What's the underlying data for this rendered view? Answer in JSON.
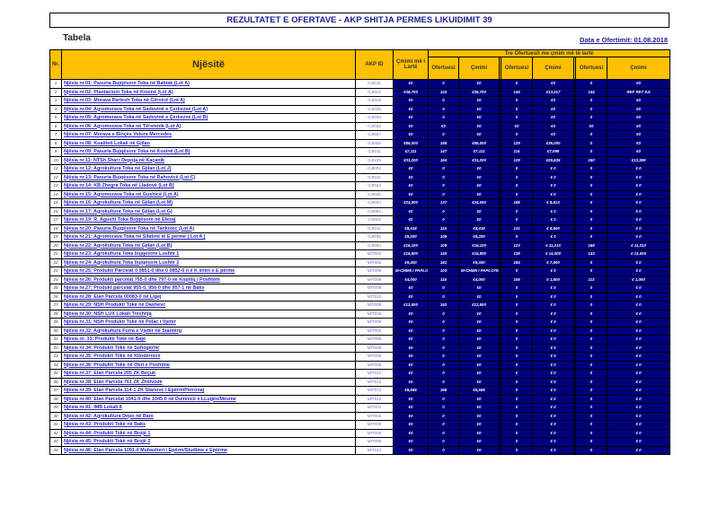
{
  "title": "REZULTATET E OFERTAVE - AKP SHITJA PERMES LIKUIDIMIT 39",
  "subtitle": "Tabela",
  "date": "Data e Ofertimit: 01.08.2018",
  "headers": {
    "nr": "Nr.",
    "unit": "Njësitë",
    "akp": "AKP ID",
    "highest": "Çmimi më i Lartë",
    "top3": "Tre Ofertuesit me çmim më të lartë",
    "bidder": "Ofertuesi",
    "price": "Çmimi"
  },
  "colors": {
    "header": "#FFC000",
    "value_bg": "#00007F",
    "link": "#2626C8"
  },
  "rows": [
    {
      "nr": "1",
      "name": "Njësia nr.01: Pasuria Bujqësore Toka në Babiak (Lot A)",
      "akp": "GJI011",
      "v": [
        "€0",
        "0",
        "€0",
        "0",
        "€0",
        "0",
        "€0"
      ]
    },
    {
      "nr": "2",
      "name": "Njësia nr.02: Plantacioni Toka në Kosinë (Lot A)",
      "akp": "GJI012",
      "v": [
        "€38,700",
        "143",
        "€38,700",
        "145",
        "€13,317",
        "144",
        "REF RET 8.6"
      ]
    },
    {
      "nr": "3",
      "name": "Njësia nr.03: Morava Partesh Toka në Cërnicë (Lot A)",
      "akp": "GJI018",
      "v": [
        "€0",
        "0",
        "€0",
        "0",
        "€0",
        "0",
        "€0"
      ]
    },
    {
      "nr": "4",
      "name": "Njësia nr.04: Agromorava Toka në Sadovinë e Çerkezve (Lot A)",
      "akp": "GJI035",
      "v": [
        "€0",
        "0",
        "€0",
        "0",
        "€0",
        "0",
        "€0"
      ]
    },
    {
      "nr": "5",
      "name": "Njësia nr.05: Agromorava Toka në Sadovinë e Çerkezve (Lot B)",
      "akp": "GJI035",
      "v": [
        "€0",
        "0",
        "€0",
        "0",
        "€0",
        "0",
        "€0"
      ]
    },
    {
      "nr": "6",
      "name": "Njësia nr.06: Agromorava Toka në Tërstenik (Lot A)",
      "akp": "GJI035",
      "v": [
        "€0",
        "€0",
        "€0",
        "€0",
        "€0",
        "€0",
        "€0"
      ]
    },
    {
      "nr": "7",
      "name": "Njësia nr.07: Morava e Binçës Vetura Mercedes",
      "akp": "GJI037",
      "v": [
        "€0",
        "0",
        "€0",
        "0",
        "€0",
        "0",
        "€0"
      ]
    },
    {
      "nr": "8",
      "name": "Njësia nr.08: Kualiteti Lokali në Gjilan",
      "akp": "GJI005",
      "v": [
        "€86,000",
        "158",
        "€86,000",
        "129",
        "€35,000",
        "0",
        "€0"
      ]
    },
    {
      "nr": "9",
      "name": "Njësia nr.09: Pasuria Bujqësore Toka në Kosinë (Lot B)",
      "akp": "GJI011",
      "v": [
        "€7,111",
        "147",
        "€7,111",
        "114",
        "€7,098",
        "0",
        "€0"
      ]
    },
    {
      "nr": "10",
      "name": "Njësia nr.11: NTSh Sharr Depoja në Kaçanik",
      "akp": "GJI105",
      "v": [
        "€31,200",
        "164",
        "€31,200",
        "129",
        "€26,535",
        "160",
        "€13,359"
      ]
    },
    {
      "nr": "11",
      "name": "Njësia nr.12: Agrokultura Toka në Gjilan (Lot J)",
      "akp": "GJI004",
      "v": [
        "€0",
        "0",
        "€0",
        "0",
        "€ 0",
        "0",
        "€ 0"
      ]
    },
    {
      "nr": "12",
      "name": "Njësia nr.13: Pasuria Bujqësore Toka në Rahovicë (Lot C)",
      "akp": "GJI011",
      "v": [
        "€0",
        "0",
        "€0",
        "0",
        "€ 0",
        "0",
        "€ 0"
      ]
    },
    {
      "nr": "13",
      "name": "Njësia nr.14: KB Zhegra Toka në Lladovë (Lot B)",
      "akp": "GJI024",
      "v": [
        "€0",
        "0",
        "€0",
        "0",
        "€ 0",
        "0",
        "€ 0"
      ]
    },
    {
      "nr": "14",
      "name": "Njësia nr.15: Agromorava Toka në Gushicë (Lot A)",
      "akp": "GJI035",
      "v": [
        "€0",
        "0",
        "€0",
        "0",
        "€ 0",
        "0",
        "€ 0"
      ]
    },
    {
      "nr": "15",
      "name": "Njësia nr.16: Agrokultura Toka në Gjilan (Lot M)",
      "akp": "GJI004",
      "v": [
        "€24,000",
        "137",
        "€24,000",
        "168",
        "€ 8,613",
        "0",
        "€ 0"
      ]
    },
    {
      "nr": "16",
      "name": "Njësia nr.17: Agrokultura Toka në Gjilan (Lot G)",
      "akp": "GJI004",
      "v": [
        "€0",
        "0",
        "€0",
        "0",
        "€ 0",
        "0",
        "€ 0"
      ]
    },
    {
      "nr": "17",
      "name": "Njësia nr.19: R. Agushi Toka Bujqësore në Elezaj",
      "akp": "GJI026",
      "v": [
        "€0",
        "0",
        "€0",
        "0",
        "€ 0",
        "0",
        "€ 0"
      ]
    },
    {
      "nr": "18",
      "name": "Njësia nr.20: Pasuria Bujqësore Toka në Tankosic (Lot A)",
      "akp": "GJI011",
      "v": [
        "€8,418",
        "115",
        "€8,418",
        "131",
        "€ 6,500",
        "0",
        "€ 0"
      ]
    },
    {
      "nr": "19",
      "name": "Njësia nr.21: Agromorava Toka në Sllatinë të E përme ( Lot A )",
      "akp": "GJI035",
      "v": [
        "€9,200",
        "108",
        "€9,200",
        "0",
        "€ 0",
        "0",
        "€ 0"
      ]
    },
    {
      "nr": "20",
      "name": "Njësia nr.22: Agrokultura Toka në Gjilan (Lot B)",
      "akp": "GJI004",
      "v": [
        "€16,100",
        "109",
        "€16,100",
        "123",
        "€ 11,213",
        "165",
        "€ 11,313"
      ]
    },
    {
      "nr": "21",
      "name": "Njësia nr.23: Agrokultura Toka bujqësore Lushtë 1",
      "akp": "MIT002",
      "v": [
        "€15,800",
        "140",
        "€15,800",
        "138",
        "€ 14,000",
        "143",
        "€ 13,000"
      ]
    },
    {
      "nr": "22",
      "name": "Njësia nr.24: Agrokultura Toka bujqësore Lushtë 2",
      "akp": "MIT002",
      "v": [
        "€9,400",
        "181",
        "€9,400",
        "184",
        "€ 7,500",
        "0",
        "€ 0"
      ]
    },
    {
      "nr": "23",
      "name": "Njësia nr.25: Produkti Parcelat 0 0851-0 dhe 0 0852-0 n ë K linën e E përme",
      "akp": "MIT008",
      "v": [
        "M-CMIMI I PAPLOT",
        "103",
        "M-CMIMI I PAPLOTES",
        "0",
        "€ 0",
        "0",
        "€ 0"
      ]
    },
    {
      "nr": "24",
      "name": "Njësia nr.26: Produkti parcelat 755-0 dhe 797-0 në Kopiliq i Poshtëm",
      "akp": "MIT008",
      "v": [
        "€4,000",
        "116",
        "€4,000",
        "106",
        "€ 1,500",
        "113",
        "€ 1,000"
      ]
    },
    {
      "nr": "25",
      "name": "Njësia nr.27: Produkt parcelat 955-0, 956-0 dhe 957-1 në Baks",
      "akp": "MIT008",
      "v": [
        "€0",
        "0",
        "€0",
        "0",
        "€ 0",
        "0",
        "€ 0"
      ]
    },
    {
      "nr": "26",
      "name": "Njësia nr.28: Elan Parcela 00083-0 në Ligej",
      "akp": "MIT012",
      "v": [
        "€0",
        "0",
        "€0",
        "0",
        "€ 0",
        "0",
        "€ 0"
      ]
    },
    {
      "nr": "27",
      "name": "Njësia nr.29: NSH Produkti Tokë në Dashevc",
      "akp": "MIT008",
      "v": [
        "€12,500",
        "162",
        "€12,500",
        "0",
        "€ 0",
        "0",
        "€ 0"
      ]
    },
    {
      "nr": "28",
      "name": "Njësia nr.30: NSH LUX Lokali Treshnja",
      "akp": "MIT039",
      "v": [
        "€0",
        "0",
        "€0",
        "0",
        "€ 0",
        "0",
        "€ 0"
      ]
    },
    {
      "nr": "29",
      "name": "Njësia nr.31: NSH Produkti Tokë në Polac i Vjetër",
      "akp": "MIT008",
      "v": [
        "€0",
        "0",
        "€0",
        "0",
        "€ 0",
        "0",
        "€ 0"
      ]
    },
    {
      "nr": "30",
      "name": "Njësia nr.32: Agrokultura Furra e Vjetër në Stantërg",
      "akp": "MIT002",
      "v": [
        "€0",
        "0",
        "€0",
        "0",
        "€ 0",
        "0",
        "€ 0"
      ]
    },
    {
      "nr": "31",
      "name": "Njësia nr. 33: Produkti Tokë në Bajë",
      "akp": "MIT008",
      "v": [
        "€0",
        "0",
        "€0",
        "0",
        "€ 0",
        "0",
        "€ 0"
      ]
    },
    {
      "nr": "32",
      "name": "Njësia nr.34: Produkti Tokë në Suhogërllë",
      "akp": "MIT008",
      "v": [
        "€0",
        "0",
        "€0",
        "0",
        "€ 0",
        "0",
        "€ 0"
      ]
    },
    {
      "nr": "33",
      "name": "Njësia nr.35: Produkti Tokë në Kllodërnicë",
      "akp": "MIT008",
      "v": [
        "€0",
        "0",
        "€0",
        "0",
        "€ 0",
        "0",
        "€ 0"
      ]
    },
    {
      "nr": "34",
      "name": "Njësia nr.36: Produkti Tokë në Obri e Poshtme",
      "akp": "MIT008",
      "v": [
        "€0",
        "0",
        "€0",
        "0",
        "€ 0",
        "0",
        "€ 0"
      ]
    },
    {
      "nr": "35",
      "name": "Njësia nr.37: Elan Parcela 205 ZK Beçuk",
      "akp": "MIT012",
      "v": [
        "€0",
        "0",
        "€0",
        "0",
        "€ 0",
        "0",
        "€ 0"
      ]
    },
    {
      "nr": "36",
      "name": "Njësia nr.38: Elan Parcela 761 ZK Zhilivodë",
      "akp": "MIT012",
      "v": [
        "€0",
        "0",
        "€0",
        "0",
        "€ 0",
        "0",
        "€ 0"
      ]
    },
    {
      "nr": "37",
      "name": "Njësia nr.39: Elan Parcela 114-1 ZK Stanovc i Epërm/Përronaj",
      "akp": "MIT012",
      "v": [
        "€5,555",
        "166",
        "€5,555",
        "0",
        "€ 0",
        "0",
        "€ 0"
      ]
    },
    {
      "nr": "38",
      "name": "Njësia nr.40: Elan Parcelat 1041-0 dhe 1045-0 në Dumnicë e LLugës/Mesme",
      "akp": "MIT012",
      "v": [
        "€0",
        "0",
        "€0",
        "0",
        "€ 0",
        "0",
        "€ 0"
      ]
    },
    {
      "nr": "39",
      "name": "Njësia nr.41: IMB Lokali 8",
      "akp": "MIT001",
      "v": [
        "€0",
        "0",
        "€0",
        "0",
        "€ 0",
        "0",
        "€ 0"
      ]
    },
    {
      "nr": "40",
      "name": "Njësia nr.42: Agrokultura Depo në Bare",
      "akp": "MIT002",
      "v": [
        "€0",
        "0",
        "€0",
        "0",
        "€ 0",
        "0",
        "€ 0"
      ]
    },
    {
      "nr": "41",
      "name": "Njësia nr.43: Produkti Tokë në Baks",
      "akp": "MIT008",
      "v": [
        "€0",
        "0",
        "€0",
        "0",
        "€ 0",
        "0",
        "€ 0"
      ]
    },
    {
      "nr": "42",
      "name": "Njësia nr.44: Produkti Tokë në Brojë 1",
      "akp": "MIT008",
      "v": [
        "€0",
        "0",
        "€0",
        "0",
        "€ 0",
        "0",
        "€ 0"
      ]
    },
    {
      "nr": "43",
      "name": "Njësia nr.45: Produkti Tokë në Brojë 2",
      "akp": "MIT008",
      "v": [
        "€0",
        "0",
        "€0",
        "0",
        "€ 0",
        "0",
        "€ 0"
      ]
    },
    {
      "nr": "44",
      "name": "Njësia nr.46: Elan Parcela 1091-0 Muhaxheri i Epërm/Studime e Epërme",
      "akp": "MIT012",
      "v": [
        "€0",
        "0",
        "€0",
        "0",
        "€ 0",
        "0",
        "€ 0"
      ]
    }
  ]
}
